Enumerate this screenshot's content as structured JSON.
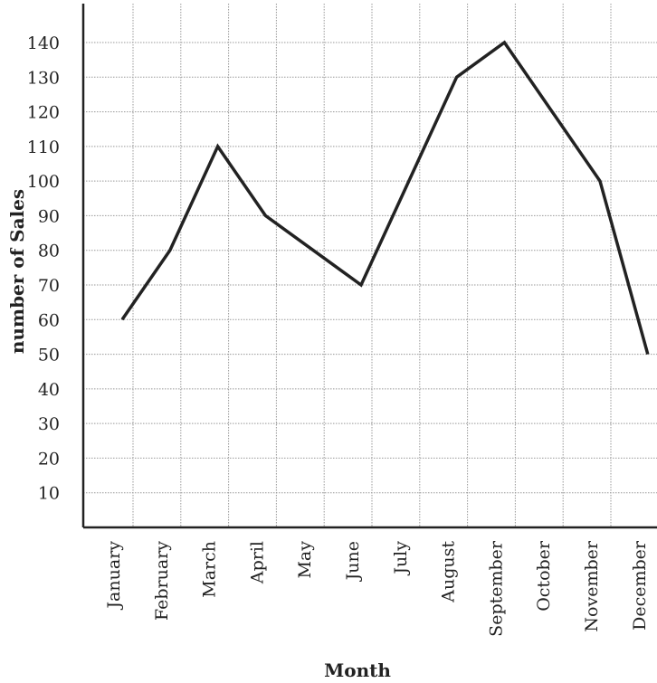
{
  "chart_data": {
    "type": "line",
    "title": "",
    "xlabel": "Month",
    "ylabel": "number of Sales",
    "categories": [
      "January",
      "February",
      "March",
      "April",
      "May",
      "June",
      "July",
      "August",
      "September",
      "October",
      "November",
      "December"
    ],
    "yticks": [
      10,
      20,
      30,
      40,
      50,
      60,
      70,
      80,
      90,
      100,
      110,
      120,
      130,
      140
    ],
    "ylim": [
      0,
      140
    ],
    "grid": true,
    "series": [
      {
        "values": [
          60,
          80,
          110,
          90,
          80,
          70,
          100,
          130,
          140,
          120,
          100,
          50
        ]
      }
    ],
    "colors": {
      "line": "#222222",
      "grid": "#999999",
      "axis": "#222222",
      "background": "#ffffff"
    }
  }
}
